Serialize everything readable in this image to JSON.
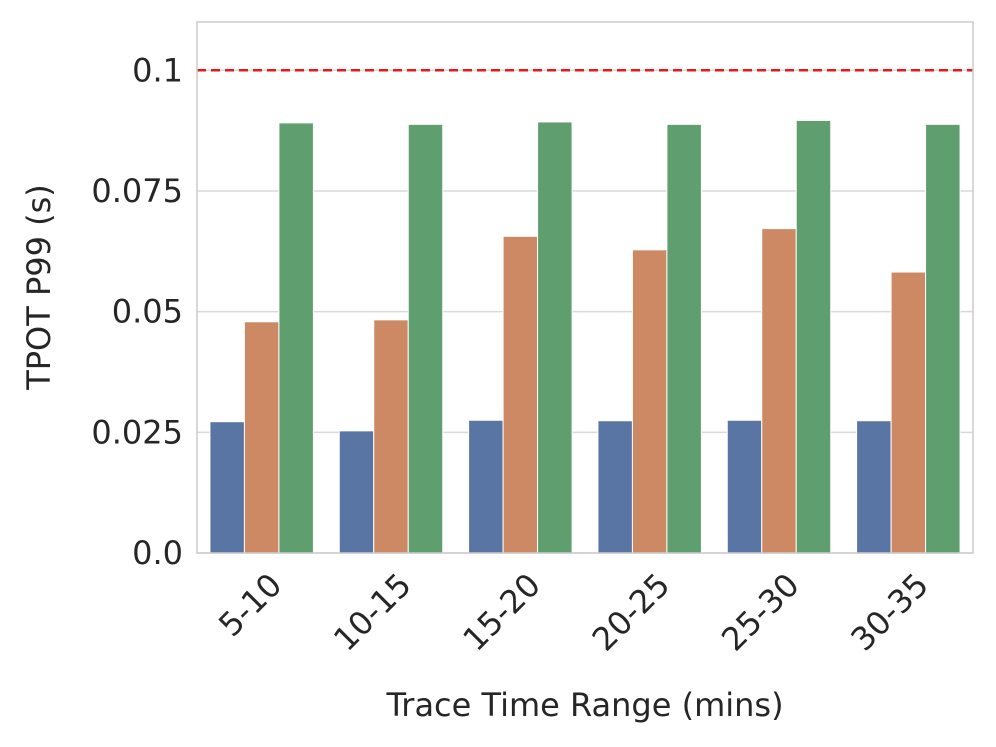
{
  "chart_data": {
    "type": "bar",
    "title": "",
    "xlabel": "Trace Time Range (mins)",
    "ylabel": "TPOT P99 (s)",
    "categories": [
      "5-10",
      "10-15",
      "15-20",
      "20-25",
      "25-30",
      "30-35"
    ],
    "series": [
      {
        "values": [
          0.0272,
          0.0253,
          0.0275,
          0.0274,
          0.0275,
          0.0274
        ],
        "color": "#5975a4"
      },
      {
        "values": [
          0.0479,
          0.0483,
          0.0656,
          0.0628,
          0.0672,
          0.0582
        ],
        "color": "#cc8963"
      },
      {
        "values": [
          0.0891,
          0.0888,
          0.0893,
          0.0888,
          0.0896,
          0.0888
        ],
        "color": "#5f9e6e"
      }
    ],
    "ylim": [
      0,
      0.11
    ],
    "yticks": [
      0,
      0.025,
      0.05,
      0.075,
      0.1
    ],
    "ytick_labels": [
      "0.0",
      "0.025",
      "0.05",
      "0.075",
      "0.1"
    ],
    "threshold": {
      "value": 0.1,
      "color": "#e31a1c",
      "style": "dashed"
    },
    "grid": true,
    "grid_axis": "y",
    "legend": "none"
  }
}
